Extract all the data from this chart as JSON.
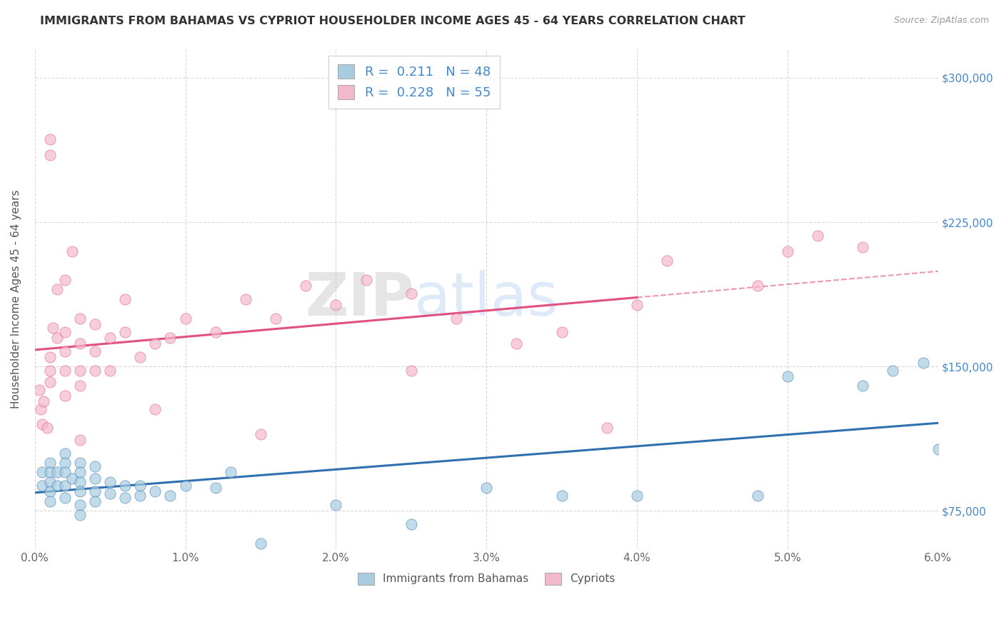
{
  "title": "IMMIGRANTS FROM BAHAMAS VS CYPRIOT HOUSEHOLDER INCOME AGES 45 - 64 YEARS CORRELATION CHART",
  "source": "Source: ZipAtlas.com",
  "ylabel_label": "Householder Income Ages 45 - 64 years",
  "xlim": [
    0.0,
    0.06
  ],
  "ylim": [
    55000,
    315000
  ],
  "ytick_vals": [
    75000,
    150000,
    225000,
    300000
  ],
  "ytick_labels": [
    "$75,000",
    "$150,000",
    "$225,000",
    "$300,000"
  ],
  "xtick_vals": [
    0.0,
    0.01,
    0.02,
    0.03,
    0.04,
    0.05,
    0.06
  ],
  "xtick_labels": [
    "0.0%",
    "1.0%",
    "2.0%",
    "3.0%",
    "4.0%",
    "5.0%",
    "6.0%"
  ],
  "legend_r1": "R =  0.211   N = 48",
  "legend_r2": "R =  0.228   N = 55",
  "watermark_zip": "ZIP",
  "watermark_atlas": "atlas",
  "blue_scatter_color": "#a8cce0",
  "pink_scatter_color": "#f4b8cc",
  "blue_line_color": "#3070b0",
  "pink_line_color": "#e05080",
  "title_color": "#333333",
  "source_color": "#999999",
  "legend_text_color": "#4488cc",
  "grid_color": "#d8d8d8",
  "tick_color": "#666666",
  "ylabel_color": "#555555",
  "right_tick_color": "#4488cc",
  "bahamas_x": [
    0.0005,
    0.0005,
    0.001,
    0.001,
    0.001,
    0.001,
    0.001,
    0.0015,
    0.0015,
    0.002,
    0.002,
    0.002,
    0.002,
    0.002,
    0.0025,
    0.003,
    0.003,
    0.003,
    0.003,
    0.003,
    0.003,
    0.004,
    0.004,
    0.004,
    0.004,
    0.005,
    0.005,
    0.006,
    0.006,
    0.007,
    0.007,
    0.008,
    0.009,
    0.01,
    0.012,
    0.013,
    0.015,
    0.02,
    0.025,
    0.03,
    0.035,
    0.04,
    0.048,
    0.05,
    0.055,
    0.057,
    0.059,
    0.06
  ],
  "bahamas_y": [
    95000,
    88000,
    100000,
    95000,
    90000,
    85000,
    80000,
    95000,
    88000,
    105000,
    100000,
    95000,
    88000,
    82000,
    92000,
    100000,
    95000,
    90000,
    85000,
    78000,
    73000,
    98000,
    92000,
    85000,
    80000,
    90000,
    84000,
    88000,
    82000,
    88000,
    83000,
    85000,
    83000,
    88000,
    87000,
    95000,
    58000,
    78000,
    68000,
    87000,
    83000,
    83000,
    83000,
    145000,
    140000,
    148000,
    152000,
    107000
  ],
  "cypriot_x": [
    0.0003,
    0.0004,
    0.0005,
    0.0006,
    0.0008,
    0.001,
    0.001,
    0.001,
    0.001,
    0.001,
    0.0012,
    0.0015,
    0.0015,
    0.002,
    0.002,
    0.002,
    0.002,
    0.002,
    0.0025,
    0.003,
    0.003,
    0.003,
    0.003,
    0.004,
    0.004,
    0.004,
    0.005,
    0.005,
    0.006,
    0.006,
    0.007,
    0.008,
    0.009,
    0.01,
    0.012,
    0.014,
    0.016,
    0.018,
    0.02,
    0.022,
    0.025,
    0.028,
    0.032,
    0.035,
    0.04,
    0.042,
    0.048,
    0.05,
    0.052,
    0.055,
    0.038,
    0.025,
    0.015,
    0.008,
    0.003
  ],
  "cypriot_y": [
    138000,
    128000,
    120000,
    132000,
    118000,
    148000,
    142000,
    260000,
    268000,
    155000,
    170000,
    165000,
    190000,
    135000,
    148000,
    158000,
    168000,
    195000,
    210000,
    148000,
    162000,
    175000,
    140000,
    158000,
    172000,
    148000,
    165000,
    148000,
    168000,
    185000,
    155000,
    162000,
    165000,
    175000,
    168000,
    185000,
    175000,
    192000,
    182000,
    195000,
    188000,
    175000,
    162000,
    168000,
    182000,
    205000,
    192000,
    210000,
    218000,
    212000,
    118000,
    148000,
    115000,
    128000,
    112000
  ]
}
